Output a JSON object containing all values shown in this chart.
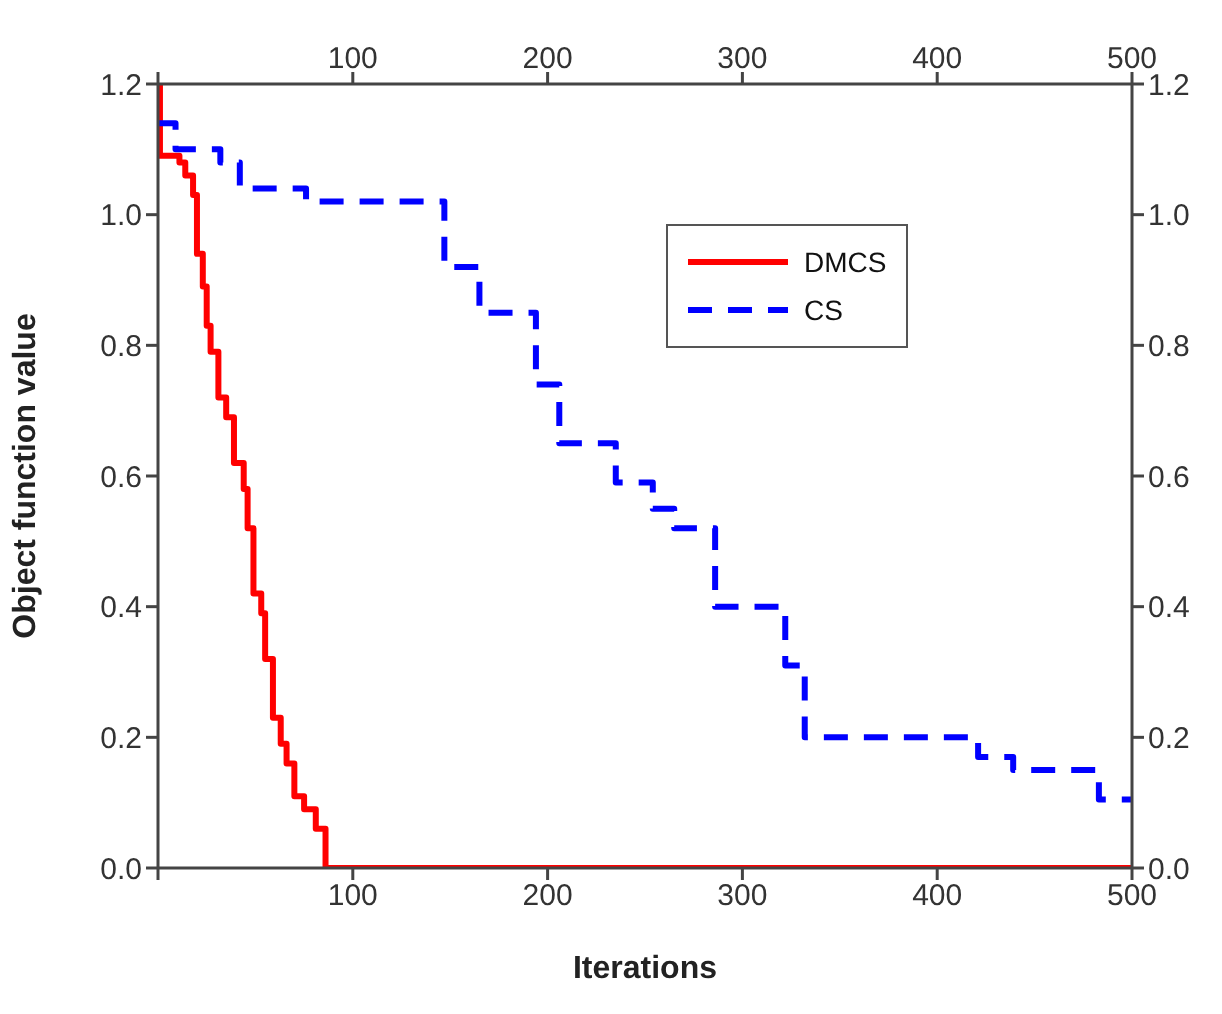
{
  "chart_data": {
    "type": "step",
    "xlabel": "Iterations",
    "ylabel": "Object function value",
    "xlim": [
      0,
      500
    ],
    "xticks": [
      {
        "value": 0,
        "label": null
      },
      100,
      200,
      300,
      400,
      500
    ],
    "x2lim": [
      0,
      500
    ],
    "x2ticks": [
      {
        "value": 0,
        "label": null
      },
      100,
      200,
      300,
      400,
      500
    ],
    "ylim": [
      0,
      1.2
    ],
    "yticks": [
      {
        "value": 0,
        "label": "0.0"
      },
      {
        "value": 0.2,
        "label": "0.2"
      },
      {
        "value": 0.4,
        "label": "0.4"
      },
      {
        "value": 0.6,
        "label": "0.6"
      },
      {
        "value": 0.8,
        "label": "0.8"
      },
      {
        "value": 1,
        "label": "1.0"
      },
      {
        "value": 1.2,
        "label": "1.2"
      }
    ],
    "y2lim": [
      0,
      1.2
    ],
    "y2ticks": [
      {
        "value": 0,
        "label": "0.0"
      },
      {
        "value": 0.2,
        "label": "0.2"
      },
      {
        "value": 0.4,
        "label": "0.4"
      },
      {
        "value": 0.6,
        "label": "0.6"
      },
      {
        "value": 0.8,
        "label": "0.8"
      },
      {
        "value": 1,
        "label": "1.0"
      },
      {
        "value": 1.2,
        "label": "1.2"
      }
    ],
    "legend": "top right",
    "series": [
      {
        "name": "DMCS",
        "color": "#ff0000",
        "line_style": "solid",
        "x": [
          0,
          1,
          11,
          14,
          18,
          20,
          23,
          25,
          27,
          31,
          35,
          39,
          44,
          46,
          49,
          53,
          55,
          59,
          63,
          66,
          70,
          75,
          81,
          86,
          500
        ],
        "values": [
          1.2,
          1.09,
          1.08,
          1.06,
          1.03,
          0.94,
          0.89,
          0.83,
          0.79,
          0.72,
          0.69,
          0.62,
          0.58,
          0.52,
          0.42,
          0.39,
          0.32,
          0.23,
          0.19,
          0.16,
          0.11,
          0.09,
          0.06,
          0,
          0
        ]
      },
      {
        "name": "CS",
        "color": "#0000ff",
        "line_style": "dashed",
        "x": [
          0,
          9,
          32,
          42,
          76,
          147,
          165,
          194,
          206,
          235,
          254,
          265,
          286,
          322,
          332,
          421,
          439,
          483,
          500
        ],
        "values": [
          1.14,
          1.1,
          1.08,
          1.04,
          1.02,
          0.92,
          0.85,
          0.74,
          0.65,
          0.59,
          0.55,
          0.52,
          0.4,
          0.31,
          0.2,
          0.17,
          0.15,
          0.105,
          0.105
        ]
      }
    ]
  }
}
